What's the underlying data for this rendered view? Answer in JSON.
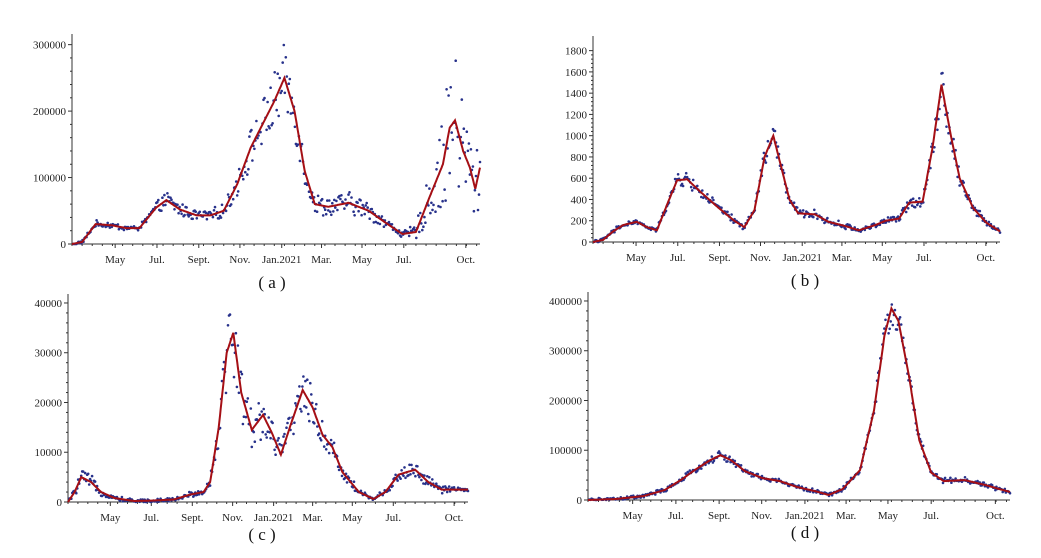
{
  "colors": {
    "points": "#27318b",
    "fit_line": "#a50f15",
    "axis": "#333333"
  },
  "chart_data": [
    {
      "type": "scatter",
      "caption": "( a )",
      "x_ticks": [
        {
          "label": "May",
          "t": 64
        },
        {
          "label": "Jul.",
          "t": 126
        },
        {
          "label": "Sept.",
          "t": 188
        },
        {
          "label": "Nov.",
          "t": 249
        },
        {
          "label": "Jan.2021",
          "t": 311
        },
        {
          "label": "Mar.",
          "t": 370
        },
        {
          "label": "May",
          "t": 430
        },
        {
          "label": "Jul.",
          "t": 492
        },
        {
          "label": "Oct.",
          "t": 584
        }
      ],
      "xlim": [
        0,
        605
      ],
      "ylim": [
        0,
        310000
      ],
      "y_ticks": [
        0,
        100000,
        200000,
        300000
      ],
      "fit_curve": [
        [
          0,
          0
        ],
        [
          15,
          3000
        ],
        [
          35,
          30000
        ],
        [
          60,
          28000
        ],
        [
          80,
          24000
        ],
        [
          100,
          24000
        ],
        [
          125,
          55000
        ],
        [
          140,
          66000
        ],
        [
          160,
          52000
        ],
        [
          185,
          43000
        ],
        [
          205,
          43000
        ],
        [
          225,
          50000
        ],
        [
          245,
          90000
        ],
        [
          265,
          145000
        ],
        [
          285,
          185000
        ],
        [
          300,
          215000
        ],
        [
          315,
          250000
        ],
        [
          330,
          200000
        ],
        [
          345,
          110000
        ],
        [
          360,
          60000
        ],
        [
          380,
          56000
        ],
        [
          410,
          62000
        ],
        [
          440,
          50000
        ],
        [
          465,
          32000
        ],
        [
          490,
          15000
        ],
        [
          510,
          18000
        ],
        [
          530,
          70000
        ],
        [
          550,
          120000
        ],
        [
          560,
          175000
        ],
        [
          568,
          186000
        ],
        [
          580,
          140000
        ],
        [
          590,
          115000
        ],
        [
          598,
          83000
        ],
        [
          605,
          115000
        ]
      ],
      "scatter_clusters": [
        {
          "t": [
            18,
            130
          ],
          "spread": 0.12
        },
        {
          "t": [
            130,
            250
          ],
          "spread": 0.18
        },
        {
          "t": [
            250,
            360
          ],
          "spread": 0.2
        },
        {
          "t": [
            360,
            500
          ],
          "spread": 0.25
        },
        {
          "t": [
            500,
            605
          ],
          "spread": 0.55
        }
      ]
    },
    {
      "type": "scatter",
      "caption": "( b )",
      "x_ticks": [
        {
          "label": "May",
          "t": 64
        },
        {
          "label": "Jul.",
          "t": 126
        },
        {
          "label": "Sept.",
          "t": 188
        },
        {
          "label": "Nov.",
          "t": 249
        },
        {
          "label": "Jan.2021",
          "t": 311
        },
        {
          "label": "Mar.",
          "t": 370
        },
        {
          "label": "May",
          "t": 430
        },
        {
          "label": "Jul.",
          "t": 492
        },
        {
          "label": "Oct.",
          "t": 584
        }
      ],
      "xlim": [
        0,
        605
      ],
      "ylim": [
        0,
        1900
      ],
      "y_ticks": [
        0,
        200,
        400,
        600,
        800,
        1000,
        1200,
        1400,
        1600,
        1800
      ],
      "fit_curve": [
        [
          0,
          0
        ],
        [
          15,
          20
        ],
        [
          30,
          100
        ],
        [
          45,
          160
        ],
        [
          65,
          190
        ],
        [
          80,
          140
        ],
        [
          95,
          110
        ],
        [
          110,
          350
        ],
        [
          125,
          580
        ],
        [
          140,
          590
        ],
        [
          160,
          470
        ],
        [
          185,
          330
        ],
        [
          210,
          200
        ],
        [
          225,
          140
        ],
        [
          240,
          300
        ],
        [
          255,
          800
        ],
        [
          268,
          1000
        ],
        [
          280,
          700
        ],
        [
          292,
          400
        ],
        [
          305,
          270
        ],
        [
          330,
          260
        ],
        [
          350,
          190
        ],
        [
          375,
          150
        ],
        [
          395,
          110
        ],
        [
          420,
          160
        ],
        [
          435,
          200
        ],
        [
          455,
          220
        ],
        [
          470,
          370
        ],
        [
          490,
          380
        ],
        [
          505,
          900
        ],
        [
          518,
          1480
        ],
        [
          532,
          1000
        ],
        [
          545,
          600
        ],
        [
          565,
          320
        ],
        [
          585,
          180
        ],
        [
          605,
          100
        ]
      ],
      "scatter_clusters": [
        {
          "t": [
            10,
            200
          ],
          "spread": 0.1
        },
        {
          "t": [
            200,
            320
          ],
          "spread": 0.12
        },
        {
          "t": [
            320,
            500
          ],
          "spread": 0.12
        },
        {
          "t": [
            500,
            605
          ],
          "spread": 0.12
        }
      ]
    },
    {
      "type": "scatter",
      "caption": "( c )",
      "x_ticks": [
        {
          "label": "May",
          "t": 64
        },
        {
          "label": "Jul.",
          "t": 126
        },
        {
          "label": "Sept.",
          "t": 188
        },
        {
          "label": "Nov.",
          "t": 249
        },
        {
          "label": "Jan.2021",
          "t": 311
        },
        {
          "label": "Mar.",
          "t": 370
        },
        {
          "label": "May",
          "t": 430
        },
        {
          "label": "Jul.",
          "t": 492
        },
        {
          "label": "Oct.",
          "t": 584
        }
      ],
      "xlim": [
        0,
        605
      ],
      "ylim": [
        0,
        41000
      ],
      "y_ticks": [
        0,
        10000,
        20000,
        30000,
        40000
      ],
      "fit_curve": [
        [
          0,
          0
        ],
        [
          10,
          2000
        ],
        [
          20,
          5000
        ],
        [
          35,
          4000
        ],
        [
          50,
          2000
        ],
        [
          70,
          800
        ],
        [
          100,
          200
        ],
        [
          130,
          300
        ],
        [
          160,
          500
        ],
        [
          185,
          1500
        ],
        [
          205,
          2000
        ],
        [
          215,
          4000
        ],
        [
          228,
          15000
        ],
        [
          240,
          30000
        ],
        [
          250,
          34000
        ],
        [
          262,
          22000
        ],
        [
          278,
          14500
        ],
        [
          295,
          17500
        ],
        [
          308,
          14000
        ],
        [
          322,
          9500
        ],
        [
          338,
          16000
        ],
        [
          355,
          22500
        ],
        [
          370,
          19000
        ],
        [
          385,
          13500
        ],
        [
          400,
          11000
        ],
        [
          415,
          6000
        ],
        [
          440,
          2000
        ],
        [
          462,
          600
        ],
        [
          480,
          2000
        ],
        [
          500,
          5500
        ],
        [
          525,
          6500
        ],
        [
          545,
          4000
        ],
        [
          565,
          2500
        ],
        [
          580,
          2500
        ]
      ],
      "scatter_clusters": [
        {
          "t": [
            0,
            205
          ],
          "spread": 0.3
        },
        {
          "t": [
            205,
            330
          ],
          "spread": 0.25
        },
        {
          "t": [
            330,
            430
          ],
          "spread": 0.2
        },
        {
          "t": [
            430,
            580
          ],
          "spread": 0.25
        }
      ]
    },
    {
      "type": "scatter",
      "caption": "( d )",
      "x_ticks": [
        {
          "label": "May",
          "t": 64
        },
        {
          "label": "Jul.",
          "t": 126
        },
        {
          "label": "Sept.",
          "t": 188
        },
        {
          "label": "Nov.",
          "t": 249
        },
        {
          "label": "Jan.2021",
          "t": 311
        },
        {
          "label": "Mar.",
          "t": 370
        },
        {
          "label": "May",
          "t": 430
        },
        {
          "label": "Jul.",
          "t": 492
        },
        {
          "label": "Oct.",
          "t": 584
        }
      ],
      "xlim": [
        0,
        605
      ],
      "ylim": [
        0,
        410000
      ],
      "y_ticks": [
        0,
        100000,
        200000,
        300000,
        400000
      ],
      "fit_curve": [
        [
          0,
          0
        ],
        [
          40,
          2000
        ],
        [
          80,
          8000
        ],
        [
          110,
          20000
        ],
        [
          135,
          42000
        ],
        [
          155,
          62000
        ],
        [
          175,
          80000
        ],
        [
          190,
          90000
        ],
        [
          205,
          80000
        ],
        [
          225,
          58000
        ],
        [
          250,
          44000
        ],
        [
          275,
          38000
        ],
        [
          300,
          26000
        ],
        [
          325,
          18000
        ],
        [
          345,
          10000
        ],
        [
          365,
          22000
        ],
        [
          390,
          60000
        ],
        [
          410,
          180000
        ],
        [
          425,
          330000
        ],
        [
          435,
          385000
        ],
        [
          445,
          360000
        ],
        [
          460,
          250000
        ],
        [
          475,
          120000
        ],
        [
          492,
          55000
        ],
        [
          510,
          38000
        ],
        [
          540,
          40000
        ],
        [
          570,
          30000
        ],
        [
          605,
          16000
        ]
      ],
      "scatter_clusters": [
        {
          "t": [
            0,
            300
          ],
          "spread": 0.08
        },
        {
          "t": [
            300,
            480
          ],
          "spread": 0.08
        },
        {
          "t": [
            480,
            605
          ],
          "spread": 0.1
        }
      ]
    }
  ]
}
